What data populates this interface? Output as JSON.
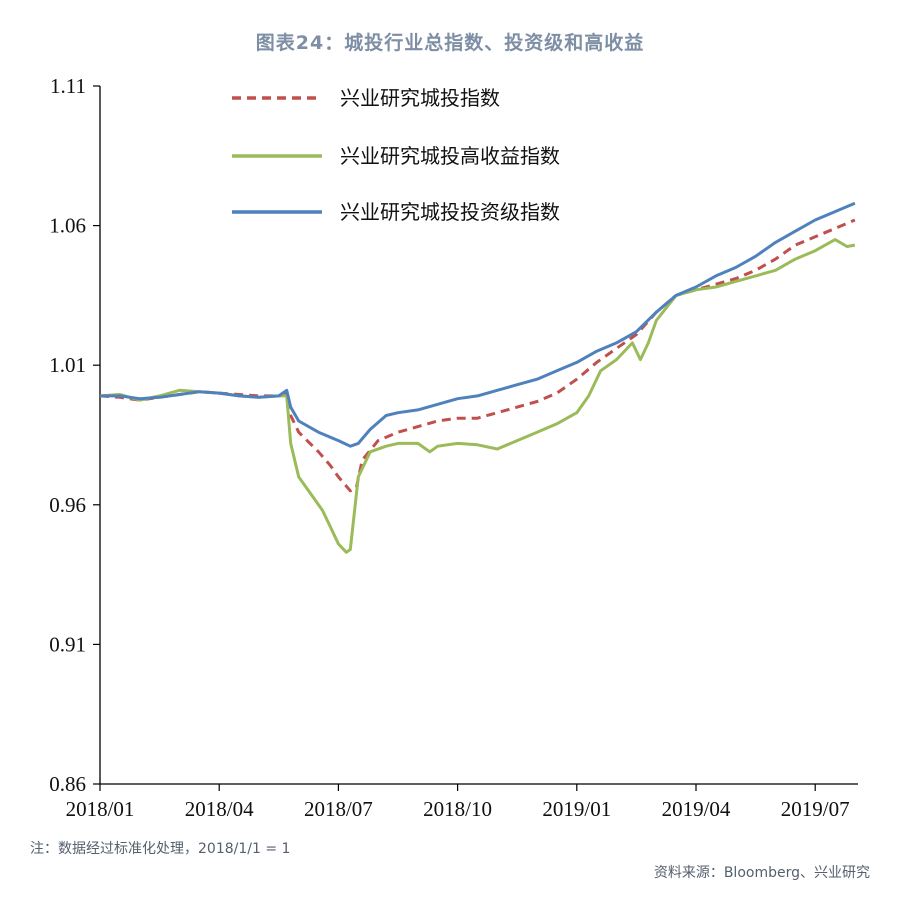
{
  "header": {
    "title": "图表24：城投行业总指数、投资级和高收益"
  },
  "footer": {
    "note": "注：数据经过标准化处理，2018/1/1 = 1",
    "source": "资料来源：Bloomberg、兴业研究"
  },
  "chart_data": {
    "type": "line",
    "ylim": [
      0.86,
      1.11
    ],
    "yticks": [
      "1.11",
      "1.06",
      "1.01",
      "0.96",
      "0.91",
      "0.86"
    ],
    "xticks": [
      "2018/01",
      "2018/04",
      "2018/07",
      "2018/10",
      "2019/01",
      "2019/04",
      "2019/07"
    ],
    "x_range_months": [
      0,
      19
    ],
    "legend_placement": "top-left",
    "grid": false,
    "series": [
      {
        "name": "兴业研究城投指数",
        "color": "#c0504d",
        "dash": "dashed",
        "points": [
          [
            0,
            0.999
          ],
          [
            0.5,
            0.9985
          ],
          [
            1,
            0.9975
          ],
          [
            1.5,
            0.9985
          ],
          [
            2,
            0.9995
          ],
          [
            2.5,
            1.0005
          ],
          [
            3,
            1.0
          ],
          [
            3.5,
            0.9995
          ],
          [
            4,
            0.999
          ],
          [
            4.5,
            0.999
          ],
          [
            4.7,
            1.0
          ],
          [
            4.8,
            0.992
          ],
          [
            5.0,
            0.986
          ],
          [
            5.5,
            0.979
          ],
          [
            5.8,
            0.974
          ],
          [
            6.0,
            0.97
          ],
          [
            6.3,
            0.965
          ],
          [
            6.45,
            0.966
          ],
          [
            6.6,
            0.976
          ],
          [
            7.0,
            0.983
          ],
          [
            7.5,
            0.986
          ],
          [
            8.0,
            0.988
          ],
          [
            8.5,
            0.99
          ],
          [
            9,
            0.991
          ],
          [
            9.5,
            0.991
          ],
          [
            10,
            0.993
          ],
          [
            10.5,
            0.995
          ],
          [
            11,
            0.997
          ],
          [
            11.5,
            1.0
          ],
          [
            12,
            1.005
          ],
          [
            12.5,
            1.011
          ],
          [
            13,
            1.016
          ],
          [
            13.5,
            1.021
          ],
          [
            14,
            1.029
          ],
          [
            14.5,
            1.035
          ],
          [
            15,
            1.037
          ],
          [
            15.5,
            1.039
          ],
          [
            16,
            1.041
          ],
          [
            16.5,
            1.044
          ],
          [
            17,
            1.048
          ],
          [
            17.5,
            1.053
          ],
          [
            18,
            1.056
          ],
          [
            18.5,
            1.059
          ],
          [
            19,
            1.062
          ]
        ]
      },
      {
        "name": "兴业研究城投高收益指数",
        "color": "#9bbb59",
        "dash": "solid",
        "points": [
          [
            0,
            0.999
          ],
          [
            0.5,
            0.9995
          ],
          [
            1,
            0.9975
          ],
          [
            1.5,
            0.999
          ],
          [
            2,
            1.001
          ],
          [
            2.5,
            1.0005
          ],
          [
            3,
            1.0
          ],
          [
            3.5,
            0.999
          ],
          [
            4,
            0.9985
          ],
          [
            4.5,
            0.999
          ],
          [
            4.7,
            0.999
          ],
          [
            4.8,
            0.982
          ],
          [
            5.0,
            0.97
          ],
          [
            5.3,
            0.964
          ],
          [
            5.6,
            0.958
          ],
          [
            5.8,
            0.952
          ],
          [
            6.0,
            0.946
          ],
          [
            6.2,
            0.943
          ],
          [
            6.3,
            0.944
          ],
          [
            6.5,
            0.97
          ],
          [
            6.8,
            0.979
          ],
          [
            7.2,
            0.981
          ],
          [
            7.5,
            0.982
          ],
          [
            8,
            0.982
          ],
          [
            8.3,
            0.979
          ],
          [
            8.5,
            0.981
          ],
          [
            9,
            0.982
          ],
          [
            9.5,
            0.9815
          ],
          [
            10,
            0.98
          ],
          [
            10.5,
            0.983
          ],
          [
            11,
            0.986
          ],
          [
            11.5,
            0.989
          ],
          [
            12,
            0.993
          ],
          [
            12.3,
            0.999
          ],
          [
            12.6,
            1.008
          ],
          [
            13,
            1.012
          ],
          [
            13.4,
            1.018
          ],
          [
            13.6,
            1.012
          ],
          [
            13.8,
            1.018
          ],
          [
            14,
            1.026
          ],
          [
            14.5,
            1.035
          ],
          [
            15,
            1.037
          ],
          [
            15.5,
            1.038
          ],
          [
            16,
            1.04
          ],
          [
            16.5,
            1.042
          ],
          [
            17,
            1.044
          ],
          [
            17.5,
            1.048
          ],
          [
            18,
            1.051
          ],
          [
            18.5,
            1.055
          ],
          [
            18.8,
            1.0525
          ],
          [
            19,
            1.053
          ]
        ]
      },
      {
        "name": "兴业研究城投投资级指数",
        "color": "#4f81bd",
        "dash": "solid",
        "points": [
          [
            0,
            0.999
          ],
          [
            0.5,
            0.999
          ],
          [
            1,
            0.998
          ],
          [
            1.5,
            0.9985
          ],
          [
            2,
            0.9995
          ],
          [
            2.5,
            1.0005
          ],
          [
            3,
            1.0
          ],
          [
            3.5,
            0.999
          ],
          [
            4,
            0.9985
          ],
          [
            4.5,
            0.999
          ],
          [
            4.7,
            1.001
          ],
          [
            4.8,
            0.995
          ],
          [
            5.0,
            0.99
          ],
          [
            5.5,
            0.986
          ],
          [
            6.0,
            0.983
          ],
          [
            6.3,
            0.981
          ],
          [
            6.5,
            0.982
          ],
          [
            6.8,
            0.987
          ],
          [
            7.2,
            0.992
          ],
          [
            7.5,
            0.993
          ],
          [
            8,
            0.994
          ],
          [
            8.5,
            0.996
          ],
          [
            9,
            0.998
          ],
          [
            9.5,
            0.999
          ],
          [
            10,
            1.001
          ],
          [
            10.5,
            1.003
          ],
          [
            11,
            1.005
          ],
          [
            11.5,
            1.008
          ],
          [
            12,
            1.011
          ],
          [
            12.5,
            1.015
          ],
          [
            13,
            1.018
          ],
          [
            13.5,
            1.022
          ],
          [
            14,
            1.029
          ],
          [
            14.5,
            1.035
          ],
          [
            15,
            1.038
          ],
          [
            15.5,
            1.042
          ],
          [
            16,
            1.045
          ],
          [
            16.5,
            1.049
          ],
          [
            17,
            1.054
          ],
          [
            17.5,
            1.058
          ],
          [
            18,
            1.062
          ],
          [
            18.5,
            1.065
          ],
          [
            19,
            1.068
          ]
        ]
      }
    ]
  }
}
